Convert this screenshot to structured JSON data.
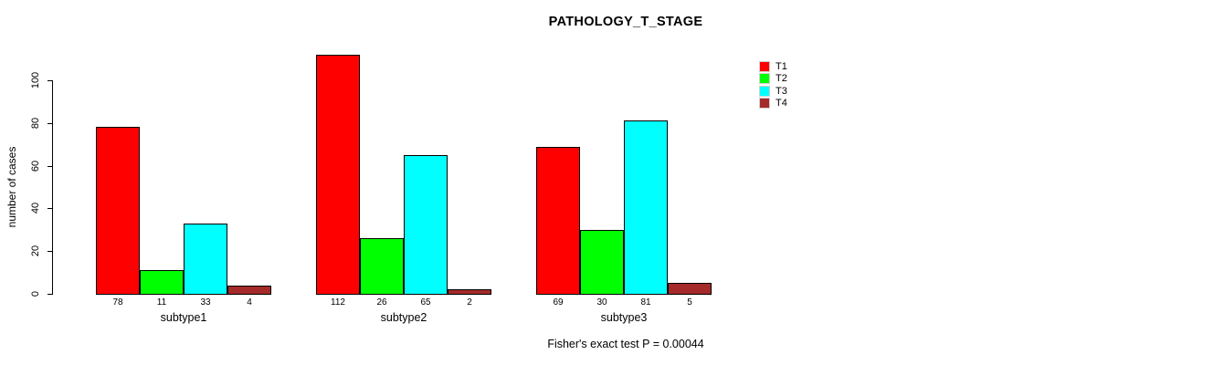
{
  "chart_data": {
    "type": "bar",
    "title": "PATHOLOGY_T_STAGE",
    "ylabel": "number of cases",
    "xlabel": "",
    "categories": [
      "subtype1",
      "subtype2",
      "subtype3"
    ],
    "series": [
      {
        "name": "T1",
        "color": "#ff0000",
        "values": [
          78,
          112,
          69
        ]
      },
      {
        "name": "T2",
        "color": "#00ff00",
        "values": [
          11,
          26,
          30
        ]
      },
      {
        "name": "T3",
        "color": "#00ffff",
        "values": [
          33,
          65,
          81
        ]
      },
      {
        "name": "T4",
        "color": "#a52a2a",
        "values": [
          4,
          2,
          5
        ]
      }
    ],
    "yticks": [
      0,
      20,
      40,
      60,
      80,
      100
    ],
    "ylim": [
      0,
      117
    ],
    "grid": false,
    "legend_position": "top-right",
    "bar_value_labels_shown": true,
    "annotation": "Fisher's exact test P = 0.00044",
    "bar_border_color": "#000000"
  }
}
